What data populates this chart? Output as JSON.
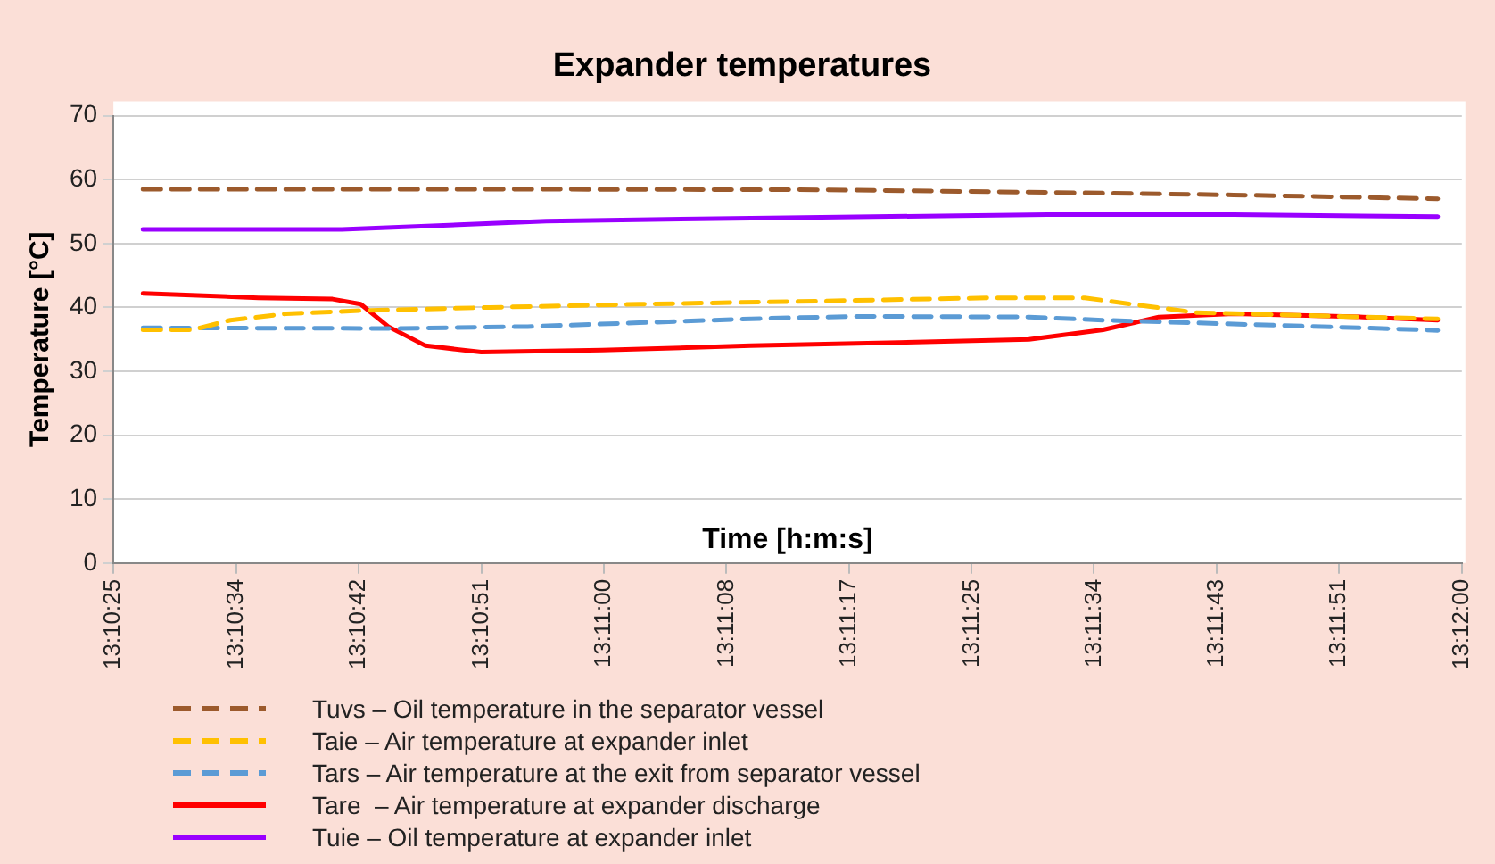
{
  "chart_data": {
    "type": "line",
    "title": "Expander temperatures",
    "xlabel": "Time [h:m:s]",
    "ylabel": "Temperature [°C]",
    "xlim": [
      13.173611,
      13.2
    ],
    "ylim": [
      0,
      70
    ],
    "yticks": [
      0,
      10,
      20,
      30,
      40,
      50,
      60,
      70
    ],
    "xticks": [
      {
        "value": 13.173611,
        "label": "13:10:25"
      },
      {
        "value": 13.17601,
        "label": "13:10:34"
      },
      {
        "value": 13.17841,
        "label": "13:10:42"
      },
      {
        "value": 13.18081,
        "label": "13:10:51"
      },
      {
        "value": 13.18321,
        "label": "13:11:00"
      },
      {
        "value": 13.18561,
        "label": "13:11:08"
      },
      {
        "value": 13.18801,
        "label": "13:11:17"
      },
      {
        "value": 13.19041,
        "label": "13:11:25"
      },
      {
        "value": 13.1928,
        "label": "13:11:34"
      },
      {
        "value": 13.1952,
        "label": "13:11:43"
      },
      {
        "value": 13.1976,
        "label": "13:11:51"
      },
      {
        "value": 13.2,
        "label": "13:12:00"
      }
    ],
    "grid": "y",
    "legend": "bottom",
    "marker": "none",
    "series": [
      {
        "name": "Tuvs – Oil temperature in the separator vessel",
        "color": "#9c5a2c",
        "line_style": "dashed",
        "x": [
          13.17419,
          13.18099,
          13.18753,
          13.19189,
          13.19553,
          13.19953
        ],
        "values": [
          58.5,
          58.5,
          58.4,
          58,
          57.6,
          57
        ]
      },
      {
        "name": "Taie – Air temperature at expander inlet",
        "color": "#ffc000",
        "line_style": "dashed",
        "x": [
          13.17419,
          13.17517,
          13.1759,
          13.17699,
          13.17845,
          13.18099,
          13.1839,
          13.18753,
          13.1908,
          13.19262,
          13.19353,
          13.1948,
          13.19662,
          13.19953
        ],
        "values": [
          36.5,
          36.5,
          38,
          39,
          39.5,
          40,
          40.5,
          41,
          41.5,
          41.5,
          40.5,
          39.2,
          38.8,
          38.2
        ]
      },
      {
        "name": "Tars – Air temperature at the exit from separator vessel",
        "color": "#5b9bd5",
        "line_style": "dashed",
        "x": [
          13.17419,
          13.17917,
          13.18172,
          13.1839,
          13.18644,
          13.18826,
          13.19153,
          13.19298,
          13.19553,
          13.19844,
          13.19953
        ],
        "values": [
          36.8,
          36.7,
          37,
          37.6,
          38.3,
          38.6,
          38.5,
          38,
          37.4,
          36.7,
          36.4
        ]
      },
      {
        "name": "Tare  – Air temperature at expander discharge",
        "color": "#ff0000",
        "line_style": "solid",
        "x": [
          13.17419,
          13.17645,
          13.1779,
          13.17845,
          13.17899,
          13.17972,
          13.18081,
          13.18317,
          13.18608,
          13.18899,
          13.19153,
          13.19298,
          13.19407,
          13.19553,
          13.19807,
          13.19953
        ],
        "values": [
          42.2,
          41.5,
          41.3,
          40.5,
          37,
          34,
          33,
          33.3,
          34,
          34.5,
          35,
          36.5,
          38.5,
          39,
          38.5,
          38
        ]
      },
      {
        "name": "Tuie – Oil temperature at expander inlet",
        "color": "#9900ff",
        "line_style": "solid",
        "x": [
          13.17419,
          13.17808,
          13.18208,
          13.18644,
          13.19189,
          13.19553,
          13.19953
        ],
        "values": [
          52.2,
          52.2,
          53.5,
          54,
          54.5,
          54.5,
          54.2
        ]
      }
    ]
  }
}
